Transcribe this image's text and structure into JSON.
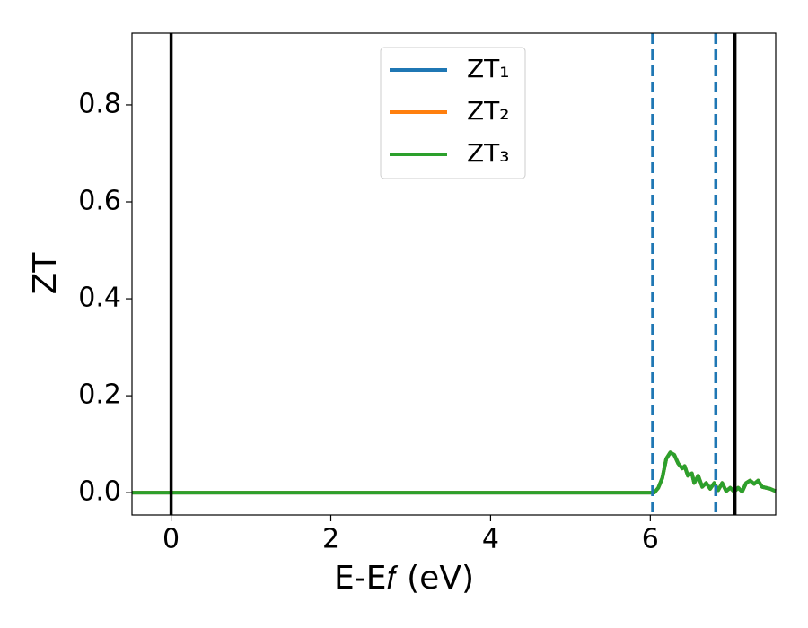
{
  "chart_data": {
    "type": "line",
    "xlabel": "E-E𝑓 (eV)",
    "ylabel": "ZT",
    "x": [
      -0.49,
      6.0,
      6.05,
      6.1,
      6.15,
      6.2,
      6.25,
      6.3,
      6.35,
      6.4,
      6.43,
      6.47,
      6.52,
      6.55,
      6.6,
      6.65,
      6.7,
      6.75,
      6.8,
      6.85,
      6.9,
      6.95,
      7.0,
      7.05,
      7.1,
      7.15,
      7.2,
      7.25,
      7.3,
      7.35,
      7.4,
      7.45,
      7.5,
      7.57
    ],
    "series": [
      {
        "name": "ZT₁",
        "color": "#1f77b4",
        "values": [
          0,
          0,
          0,
          0.01,
          0.03,
          0.07,
          0.083,
          0.078,
          0.06,
          0.05,
          0.055,
          0.035,
          0.04,
          0.02,
          0.035,
          0.012,
          0.02,
          0.008,
          0.02,
          0.005,
          0.02,
          0.003,
          0.01,
          0.002,
          0.01,
          0.002,
          0.02,
          0.025,
          0.018,
          0.025,
          0.012,
          0.01,
          0.008,
          0.003
        ]
      },
      {
        "name": "ZT₂",
        "color": "#ff7f0e",
        "values": [
          0,
          0,
          0,
          0.01,
          0.03,
          0.07,
          0.083,
          0.078,
          0.06,
          0.05,
          0.055,
          0.035,
          0.04,
          0.02,
          0.035,
          0.012,
          0.02,
          0.008,
          0.02,
          0.005,
          0.02,
          0.003,
          0.01,
          0.002,
          0.01,
          0.002,
          0.02,
          0.025,
          0.018,
          0.025,
          0.012,
          0.01,
          0.008,
          0.003
        ]
      },
      {
        "name": "ZT₃",
        "color": "#2ca02c",
        "values": [
          0,
          0,
          0,
          0.01,
          0.03,
          0.07,
          0.083,
          0.078,
          0.06,
          0.05,
          0.055,
          0.035,
          0.04,
          0.02,
          0.035,
          0.012,
          0.02,
          0.008,
          0.02,
          0.005,
          0.02,
          0.003,
          0.01,
          0.002,
          0.01,
          0.002,
          0.02,
          0.025,
          0.018,
          0.025,
          0.012,
          0.01,
          0.008,
          0.003
        ]
      }
    ],
    "vlines": [
      {
        "x": 0,
        "color": "#000000",
        "dashed": false
      },
      {
        "x": 6.03,
        "color": "#1f77b4",
        "dashed": true
      },
      {
        "x": 6.82,
        "color": "#1f77b4",
        "dashed": true
      },
      {
        "x": 7.06,
        "color": "#000000",
        "dashed": false
      }
    ],
    "xlim": [
      -0.49,
      7.57
    ],
    "ylim": [
      -0.046,
      0.948
    ],
    "xticks": [
      0,
      2,
      4,
      6
    ],
    "yticks": [
      {
        "value": 0,
        "label": "0.0"
      },
      0.2,
      0.4,
      0.6,
      0.8
    ],
    "legend": "upper center",
    "grid": false
  }
}
